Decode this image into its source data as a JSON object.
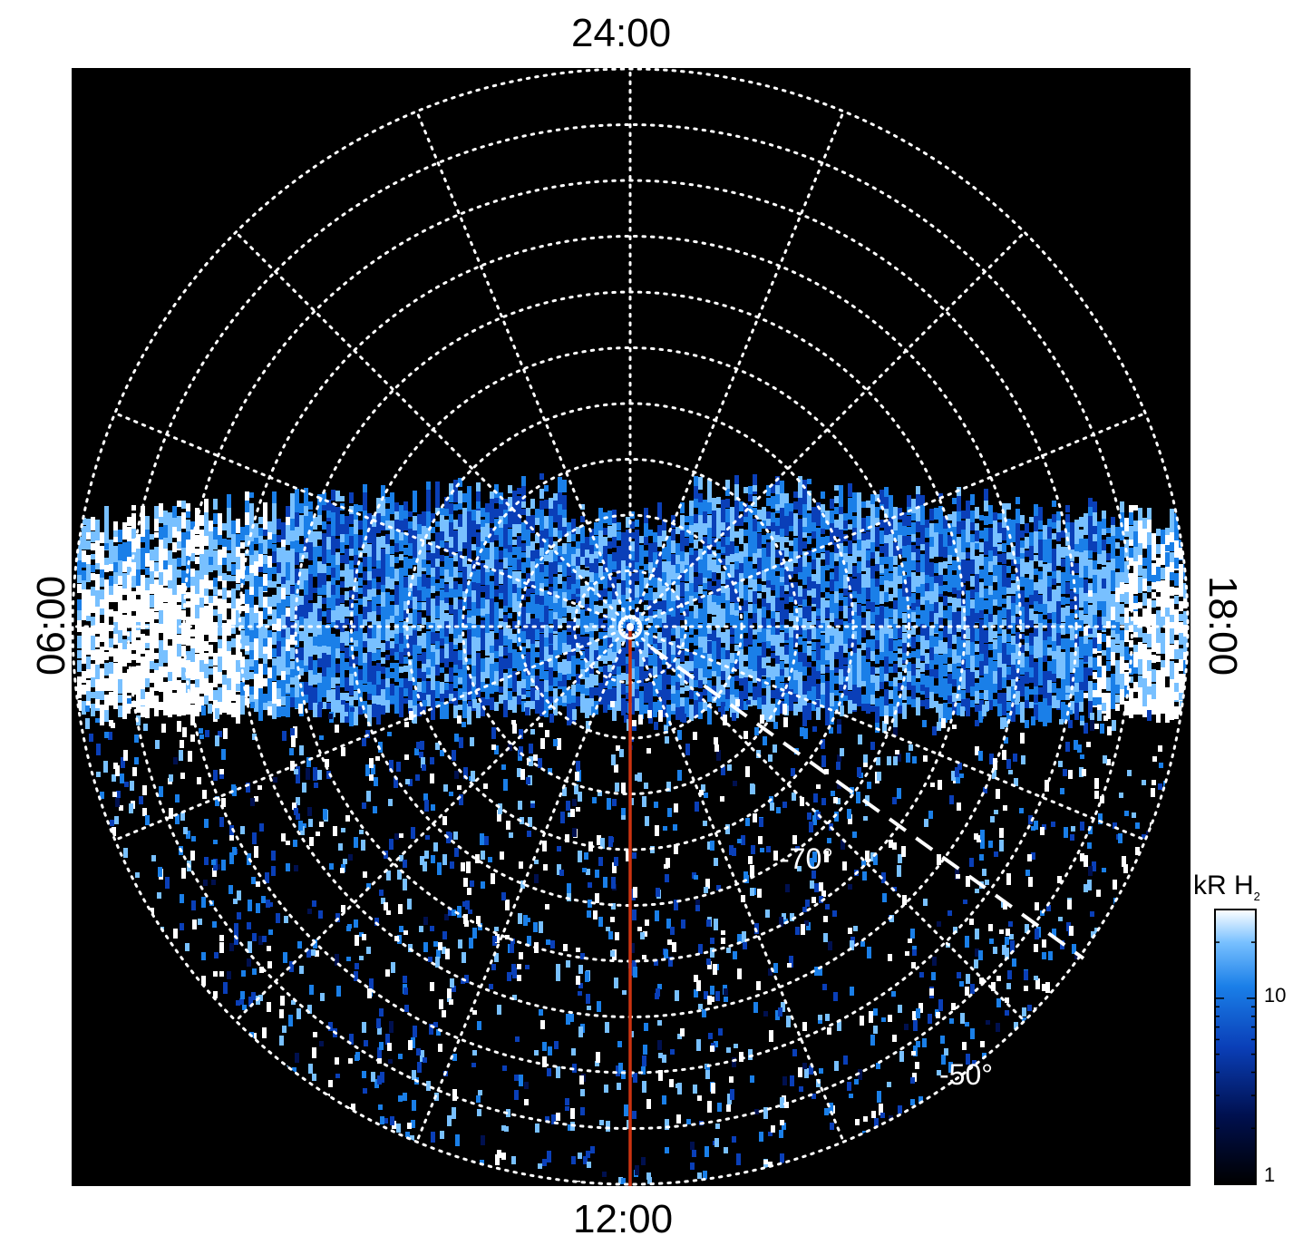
{
  "chart_data": {
    "type": "heatmap",
    "projection": "polar",
    "hemisphere": "south",
    "local_time_labels": {
      "top": "24:00",
      "bottom": "12:00",
      "left": "06:00",
      "right": "18:00"
    },
    "latitude_labels": [
      "-70°",
      "-50°"
    ],
    "latitude_rings_deg": [
      -85,
      -80,
      -75,
      -70,
      -65,
      -60,
      -55,
      -50,
      -45
    ],
    "longitude_spokes_every_hours": 1.5,
    "colorbar": {
      "title": "kR H",
      "title_subscript": "2",
      "scale": "log",
      "range": [
        1,
        30
      ],
      "ticks": [
        "1",
        "10"
      ],
      "colors": [
        "#000000",
        "#00104f",
        "#0a3fb8",
        "#1a7fe8",
        "#78c0ff",
        "#ffffff"
      ]
    },
    "overlays": {
      "red_line": {
        "color": "#cc3311",
        "from_local_time": "centre",
        "to_local_time": "12:00"
      },
      "dashed_line": {
        "color": "#ffffff",
        "local_time_hours": 15.5
      }
    },
    "bright_regions": [
      {
        "local_time_hours": 16.8,
        "intensity_kR": 25
      },
      {
        "local_time_hours": 7.5,
        "intensity_kR": 15
      },
      {
        "local_time_hours": 8.7,
        "intensity_kR": 18
      }
    ],
    "grid": true,
    "background_color": "#000000"
  }
}
